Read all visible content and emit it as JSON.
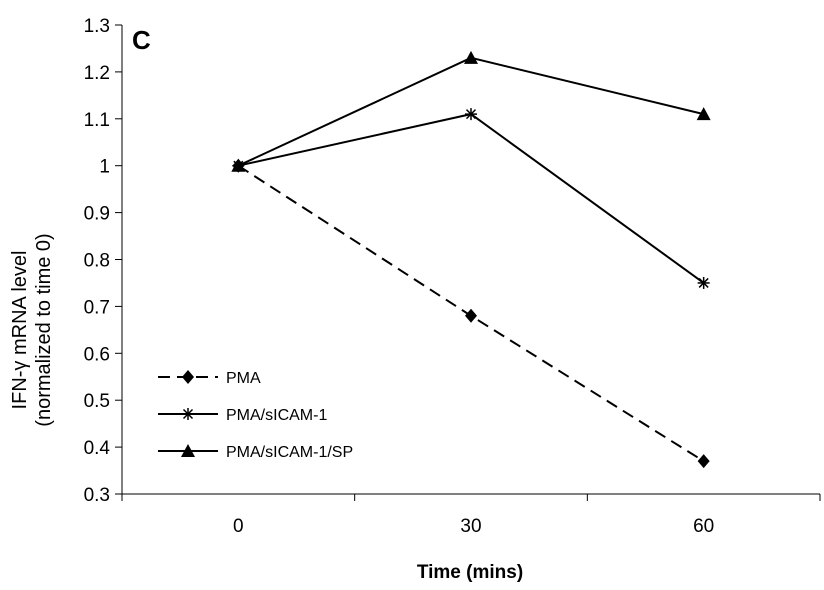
{
  "chart_data": {
    "type": "line",
    "panel_label": "C",
    "xlabel": "Time (mins)",
    "ylabel_line1": "IFN-γ mRNA level",
    "ylabel_line2": "(normalized to time 0)",
    "categories": [
      "0",
      "30",
      "60"
    ],
    "ylim": [
      0.3,
      1.3
    ],
    "yticks": [
      "0.3",
      "0.4",
      "0.5",
      "0.6",
      "0.7",
      "0.8",
      "0.9",
      "1",
      "1.1",
      "1.2",
      "1.3"
    ],
    "grid": false,
    "legend_position": "bottom-left",
    "series": [
      {
        "name": "PMA",
        "values": [
          1.0,
          0.68,
          0.37
        ],
        "marker": "diamond",
        "line_style": "dashed",
        "color": "#000000"
      },
      {
        "name": "PMA/sICAM-1",
        "values": [
          1.0,
          1.11,
          0.75
        ],
        "marker": "asterisk",
        "line_style": "solid",
        "color": "#000000"
      },
      {
        "name": "PMA/sICAM-1/SP",
        "values": [
          1.0,
          1.23,
          1.11
        ],
        "marker": "triangle",
        "line_style": "solid",
        "color": "#000000"
      }
    ]
  }
}
